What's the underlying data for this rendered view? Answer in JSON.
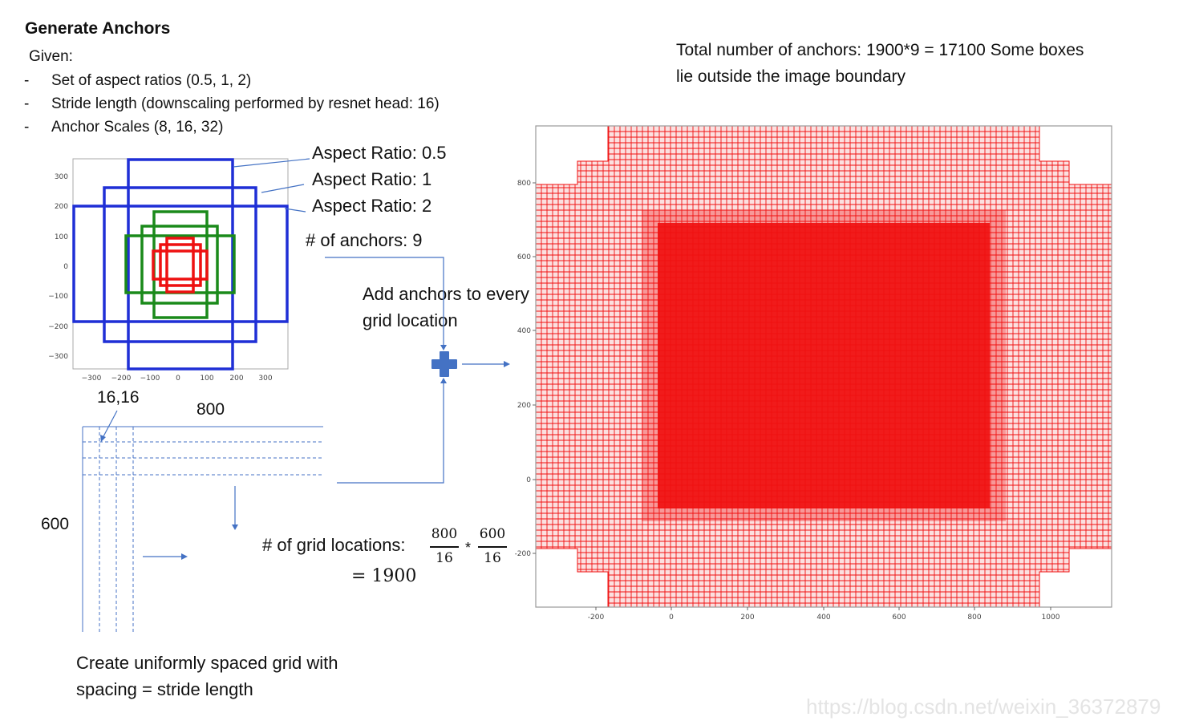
{
  "title": "Generate Anchors",
  "given": "Given:",
  "bullets": [
    "Set of aspect ratios (0.5, 1, 2)",
    "Stride length (downscaling performed by resnet head: 16)",
    "Anchor Scales (8, 16, 32)"
  ],
  "total_text": "Total number of anchors: 1900*9 = 17100 Some boxes lie outside the image boundary",
  "aspect_labels": [
    "Aspect Ratio: 0.5",
    "Aspect Ratio: 1",
    "Aspect Ratio: 2"
  ],
  "num_anchors": "# of anchors: 9",
  "add_anchors_text": "Add anchors to every grid location",
  "grid_labels": {
    "corner": "16,16",
    "width": "800",
    "height": "600"
  },
  "grid_locations": {
    "label": "# of grid locations:",
    "num1": "800",
    "den1": "16",
    "op": "*",
    "num2": "600",
    "den2": "16",
    "result": "= 1900"
  },
  "create_text": "Create uniformly spaced grid with spacing = stride length",
  "watermark": "https://blog.csdn.net/weixin_36372879",
  "small_plot": {
    "x_ticks": [
      "−300",
      "−200",
      "−100",
      "0",
      "100",
      "200",
      "300"
    ],
    "y_ticks": [
      "300",
      "200",
      "100",
      "0",
      "−100",
      "−200",
      "−300"
    ],
    "colors": {
      "scale_32": "#1f2fd6",
      "scale_16": "#1a8a1a",
      "scale_8": "#ee1111"
    }
  },
  "big_plot": {
    "x_ticks": [
      "-200",
      "0",
      "200",
      "400",
      "600",
      "800",
      "1000"
    ],
    "y_ticks": [
      "800",
      "600",
      "400",
      "200",
      "0",
      "-200"
    ],
    "color": "#f01010"
  },
  "colors": {
    "arrow": "#4472c4",
    "plus": "#4472c4"
  }
}
